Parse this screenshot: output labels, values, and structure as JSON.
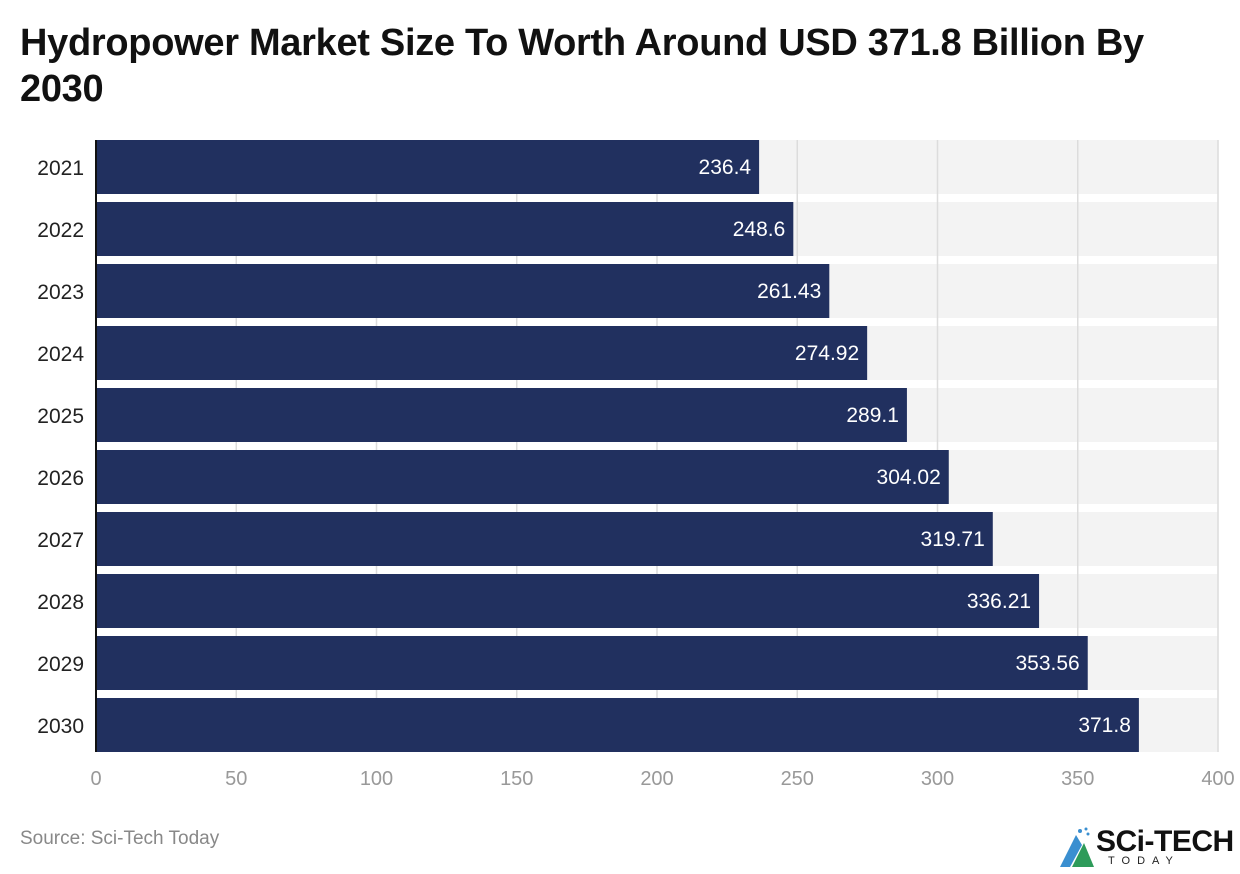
{
  "chart_data": {
    "type": "bar",
    "orientation": "horizontal",
    "title": "Hydropower Market Size To Worth Around USD 371.8 Billion By 2030",
    "categories": [
      "2021",
      "2022",
      "2023",
      "2024",
      "2025",
      "2026",
      "2027",
      "2028",
      "2029",
      "2030"
    ],
    "values": [
      236.4,
      248.6,
      261.43,
      274.92,
      289.1,
      304.02,
      319.71,
      336.21,
      353.56,
      371.8
    ],
    "data_labels": [
      "236.4",
      "248.6",
      "261.43",
      "274.92",
      "289.1",
      "304.02",
      "319.71",
      "336.21",
      "353.56",
      "371.8"
    ],
    "xlim": [
      0,
      400
    ],
    "xticks": [
      "0",
      "50",
      "100",
      "150",
      "200",
      "250",
      "300",
      "350",
      "400"
    ],
    "xlabel": "",
    "ylabel": "",
    "grid": true,
    "bar_color": "#21305f",
    "band_color": "#f3f3f3"
  },
  "source": "Source: Sci-Tech Today",
  "logo": {
    "main": "SCi-TECH",
    "sub": "TODAY"
  }
}
